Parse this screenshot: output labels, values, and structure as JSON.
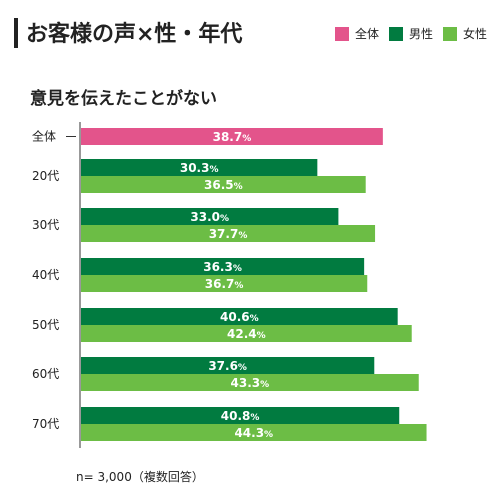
{
  "header": {
    "title": "お客様の声×性・年代"
  },
  "legend": [
    {
      "label": "全体",
      "color": "#e3548b"
    },
    {
      "label": "男性",
      "color": "#017b40"
    },
    {
      "label": "女性",
      "color": "#6cbd45"
    }
  ],
  "colors": {
    "total": "#e3548b",
    "male": "#017b40",
    "female": "#6cbd45"
  },
  "chart_data": {
    "type": "bar",
    "orientation": "horizontal",
    "title": "意見を伝えたことがない",
    "value_unit": "%",
    "xlim": [
      0,
      100
    ],
    "grid": false,
    "legend_position": "top-right",
    "groups": [
      {
        "label": "全体",
        "bars": [
          {
            "series": "全体",
            "value": 38.7
          }
        ]
      },
      {
        "label": "20代",
        "bars": [
          {
            "series": "男性",
            "value": 30.3
          },
          {
            "series": "女性",
            "value": 36.5
          }
        ]
      },
      {
        "label": "30代",
        "bars": [
          {
            "series": "男性",
            "value": 33.0
          },
          {
            "series": "女性",
            "value": 37.7
          }
        ]
      },
      {
        "label": "40代",
        "bars": [
          {
            "series": "男性",
            "value": 36.3
          },
          {
            "series": "女性",
            "value": 36.7
          }
        ]
      },
      {
        "label": "50代",
        "bars": [
          {
            "series": "男性",
            "value": 40.6
          },
          {
            "series": "女性",
            "value": 42.4
          }
        ]
      },
      {
        "label": "60代",
        "bars": [
          {
            "series": "男性",
            "value": 37.6
          },
          {
            "series": "女性",
            "value": 43.3
          }
        ]
      },
      {
        "label": "70代",
        "bars": [
          {
            "series": "男性",
            "value": 40.8
          },
          {
            "series": "女性",
            "value": 44.3
          }
        ]
      }
    ]
  },
  "footnote": "n= 3,000（複数回答）"
}
